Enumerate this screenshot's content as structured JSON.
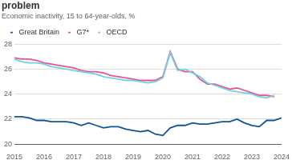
{
  "chart_data": {
    "type": "line",
    "title": "problem",
    "subtitle": "Economic inactivity, 15 to 64-year-olds, %",
    "x": [
      2015,
      2015.25,
      2015.5,
      2015.75,
      2016,
      2016.25,
      2016.5,
      2016.75,
      2017,
      2017.25,
      2017.5,
      2017.75,
      2018,
      2018.25,
      2018.5,
      2018.75,
      2019,
      2019.25,
      2019.5,
      2019.75,
      2020,
      2020.25,
      2020.5,
      2020.75,
      2021,
      2021.25,
      2021.5,
      2021.75,
      2022,
      2022.25,
      2022.5,
      2022.75,
      2023,
      2023.25,
      2023.5,
      2023.75,
      2024
    ],
    "series": [
      {
        "name": "Great Britain",
        "color": "#0f5499",
        "values": [
          22.2,
          22.2,
          22.1,
          21.9,
          21.9,
          21.8,
          21.8,
          21.8,
          21.7,
          21.5,
          21.7,
          21.5,
          21.3,
          21.4,
          21.4,
          21.2,
          21.1,
          21.0,
          21.1,
          20.8,
          20.7,
          21.3,
          21.5,
          21.5,
          21.7,
          21.6,
          21.6,
          21.7,
          21.8,
          21.8,
          22.0,
          21.7,
          21.5,
          21.4,
          21.9,
          21.9,
          22.1
        ]
      },
      {
        "name": "G7*",
        "color": "#e8538f",
        "values": [
          26.9,
          26.8,
          26.8,
          26.7,
          26.5,
          26.4,
          26.3,
          26.2,
          26.1,
          25.9,
          25.8,
          25.8,
          25.7,
          25.5,
          25.4,
          25.3,
          25.2,
          25.1,
          25.1,
          25.1,
          25.4,
          27.4,
          26.0,
          25.8,
          25.8,
          25.2,
          24.8,
          24.8,
          24.6,
          24.4,
          24.5,
          24.3,
          24.1,
          23.9,
          23.9,
          23.8,
          null
        ]
      },
      {
        "name": "OECD",
        "color": "#6dd3e6",
        "values": [
          26.8,
          26.6,
          26.5,
          26.5,
          26.4,
          26.2,
          26.1,
          26.0,
          25.9,
          25.8,
          25.7,
          25.6,
          25.4,
          25.3,
          25.2,
          25.1,
          25.1,
          25.0,
          24.9,
          25.0,
          25.3,
          27.3,
          25.9,
          26.0,
          25.7,
          25.4,
          24.9,
          24.7,
          24.5,
          24.3,
          24.2,
          24.1,
          24.0,
          23.8,
          23.7,
          23.9,
          null
        ]
      }
    ],
    "xlim": [
      2015,
      2024
    ],
    "xticks": [
      2015,
      2016,
      2017,
      2018,
      2019,
      2020,
      2021,
      2022,
      2023,
      2024
    ],
    "ylim": [
      20,
      28
    ],
    "yticks": [
      20,
      22,
      24,
      26,
      28
    ],
    "grid": true,
    "legend": "top-left"
  }
}
